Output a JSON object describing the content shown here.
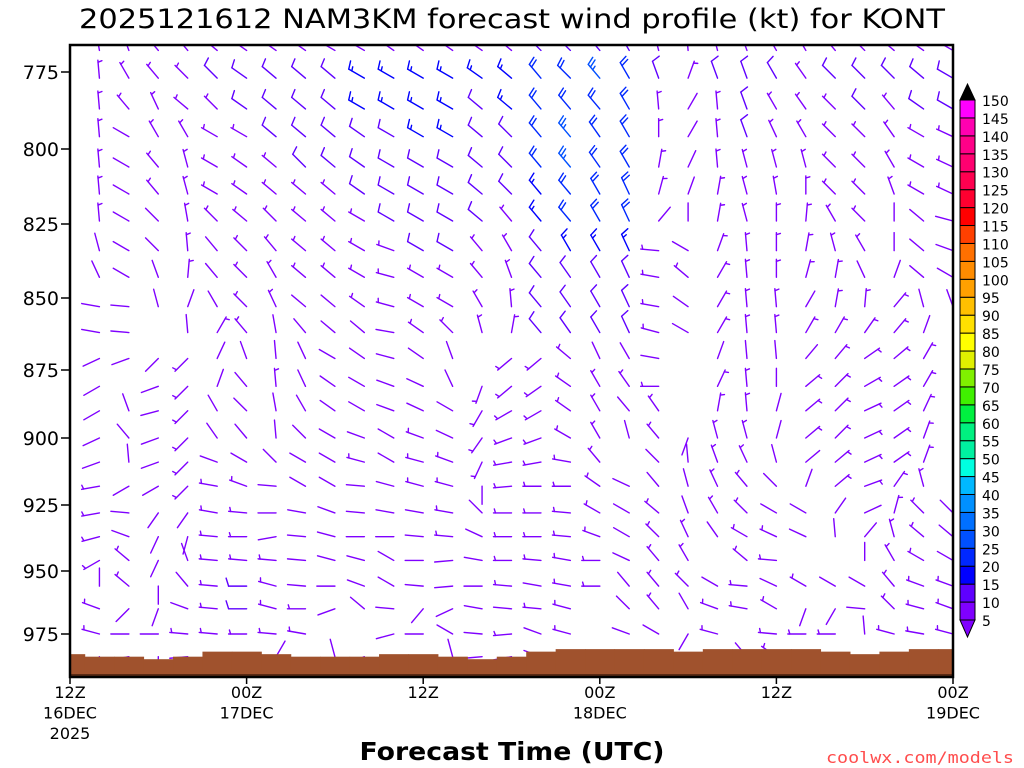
{
  "chart_data": {
    "type": "wind-barb",
    "title": "2025121612 NAM3KM forecast wind profile (kt) for KONT",
    "xlabel": "Forecast Time (UTC)",
    "ylabel": "",
    "units": "kt",
    "xlim": [
      0,
      60
    ],
    "ylim": [
      992,
      766
    ],
    "forecast_hours_step": 2,
    "y_ticks": [
      "775",
      "800",
      "825",
      "850",
      "875",
      "900",
      "925",
      "950",
      "975"
    ],
    "x_ticks": [
      {
        "hour": 0,
        "lines": [
          "12Z",
          "16DEC",
          "2025"
        ]
      },
      {
        "hour": 12,
        "lines": [
          "00Z",
          "17DEC"
        ]
      },
      {
        "hour": 24,
        "lines": [
          "12Z"
        ]
      },
      {
        "hour": 36,
        "lines": [
          "00Z",
          "18DEC"
        ]
      },
      {
        "hour": 48,
        "lines": [
          "12Z"
        ]
      },
      {
        "hour": 60,
        "lines": [
          "00Z",
          "19DEC"
        ]
      }
    ],
    "levels_hpa": [
      768,
      777,
      787,
      796,
      806,
      815,
      824,
      834,
      843,
      853,
      862,
      871,
      881,
      890,
      900,
      909,
      918,
      928,
      937,
      946,
      956,
      965,
      975,
      984
    ],
    "wind_rows_dir_kt": [
      "200/3 350/3 340/3 320/3 320/5 310/3 305/3 305/3 305/3 300/3 300/5 305/5 305/5 305/5 305/5 310/5 315/10 315/10 320/10 330/10 345/3 355/3 345/3 340/3 330/3 330/3 320/3 315/3 310/3 305/3 300/5",
      "210/10 355/5 330/5 320/5 315/5 315/10 305/10 310/10 310/10 310/10 300/15 300/15 300/15 300/15 305/15 310/15 320/20 315/20 320/25 330/20 340/10 20/5 340/10 340/10 330/10 325/5 315/10 315/10 315/10 310/10 300/10",
      "210/10 355/5 320/5 335/5 310/5 315/5 305/10 310/10 310/10 310/10 300/15 300/15 300/15 300/15 310/10 310/15 320/20 320/20 320/20 330/20 355/5 30/3 355/5 340/10 330/5 325/5 315/5 315/10 320/5 305/10 300/10",
      "210/10 355/5 300/3 330/5 330/5 300/5 300/5 310/10 310/10 310/10 305/10 300/10 300/15 300/15 310/10 315/10 320/20 320/25 325/20 330/20 0/5 30/3 355/5 340/10 335/5 330/5 315/5 315/5 325/5 300/5 295/5",
      "225/5 355/5 300/3 320/5 345/5 300/5 305/5 310/5 315/10 310/10 305/10 300/10 300/10 300/10 310/10 315/10 320/20 320/25 325/20 330/20 10/5 25/3 355/5 345/5 345/5 345/5 315/5 315/5 330/5 300/5 295/5",
      "225/5 355/5 300/3 320/5 345/5 300/5 305/5 310/5 310/5 310/5 305/10 300/10 300/10 300/10 310/10 315/10 320/15 320/20 330/20 335/20 15/5 20/3 10/5 345/5 350/5 0/5 315/5 315/5 340/5 300/5 295/5",
      "225/5 355/5 300/3 315/3 350/5 315/5 310/5 315/5 310/5 310/5 300/5 300/10 300/10 300/10 310/10 320/5 320/15 320/20 330/20 335/20 40/3 0/3 10/5 345/5 0/5 5/5 330/5 315/5 0/3 310/3 285/3",
      "225/5 345/3 300/3 315/3 355/5 320/3 315/5 320/5 310/5 310/5 300/5 290/5 300/10 300/10 320/5 330/5 320/10 330/15 330/15 335/15 275/5 300/3 20/5 355/5 0/5 10/5 345/5 330/5 0/3 310/3 290/3",
      "225/5 335/3 300/3 340/3 5/5 320/3 315/5 330/5 310/5 310/5 300/5 285/5 300/5 300/5 320/5 340/5 320/10 325/10 330/10 335/10 280/5 310/5 30/5 355/5 0/5 15/5 10/5 335/3 20/3 310/3 300/3",
      "235/10 280/3 275/3 345/3 20/3 330/3 315/5 335/5 310/3 310/3 305/5 285/5 300/5 300/5 330/5 355/5 320/10 325/10 330/10 335/10 280/5 305/3 30/5 355/5 355/5 30/3 10/5 5/5 40/5 345/3 340/3",
      "225/3 280/3 275/3 - 355/3 30/5 320/5 350/3 320/3 310/3 310/3 280/3 305/5 315/5 345/5 10/5 320/10 325/10 330/10 335/10 285/5 300/3 30/5 355/5 355/5 30/5 30/5 35/5 40/5 20/3 -",
      "210/3 245/3 250/3 225/3 225/5 25/3 340/3 355/3 335/3 300/3 305/3 285/3 305/3 340/3 - 230/5 230/5 310/5 335/3 330/3 280/3 - 20/3 355/3 355/3 40/3 40/5 55/5 50/5 30/5 -",
      "210/3 240/3 - 250/3 225/5 20/3 320/3 355/5 335/3 305/3 300/3 290/3 295/3 335/3 200/5 230/5 235/5 305/5 330/5 325/5 270/5 - 25/5 355/5 0/3 50/5 45/5 60/5 55/5 30/5 -",
      "210/3 240/3 340/3 255/3 225/5 330/3 315/3 350/3 330/3 305/3 300/3 290/3 295/3 300/3 210/5 240/5 240/5 305/5 330/5 320/3 325/5 - 10/5 355/5 15/3 50/5 45/5 65/5 55/5 25/5 -",
      "210/3 245/3 320/3 250/3 225/5 325/3 320/3 355/3 315/3 300/3 290/3 300/3 290/5 295/3 215/5 250/5 250/5 300/5 330/5 345/3 320/5 200/3 345/5 345/5 15/3 50/5 45/5 65/5 55/5 20/5 -",
      "210/3 250/3 355/3 250/3 225/5 290/3 300/3 315/3 300/3 300/3 285/5 300/3 285/5 290/5 205/5 260/5 260/5 280/5 320/5 - 315/3 355/3 340/5 335/5 345/3 50/3 50/5 65/5 55/5 20/5 -",
      "210/3 260/5 240/3 240/3 225/5 280/5 290/5 275/3 300/3 300/3 275/3 285/3 285/5 285/5 180/3 265/5 270/5 270/5 305/5 295/3 320/3 345/3 335/5 320/5 315/3 20/3 50/5 70/5 35/5 345/5 -",
      "235/5 260/5 275/3 215/3 215/3 280/5 275/5 270/3 280/3 290/3 275/3 280/3 280/3 280/5 315/3 270/5 270/5 275/5 300/5 300/3 310/5 340/3 330/5 315/5 300/3 300/3 35/3 65/3 15/5 315/5 315/3",
      "235/5 255/5 290/3 205/3 195/3 275/5 270/5 260/3 275/3 285/3 270/3 270/3 275/3 275/5 295/3 270/5 270/5 275/5 290/5 300/3 315/5 335/5 325/3 300/5 295/5 295/3 355/3 40/3 345/5 310/5 310/3",
      "235/5 240/5 310/5 205/3 340/3 275/5 275/5 275/5 275/3 285/3 285/3 300/3 270/3 265/3 280/3 270/5 275/5 280/5 270/5 295/3 320/5 330/5 - 310/5 275/5 - - 0/3 330/5 300/5 300/3",
      "290/3 0/3 310/5 180/3 320/3 275/5 270/10 285/5 275/3 270/3 290/3 300/3 275/3 265/3 270/3 275/5 280/3 280/5 270/5 320/3 320/5 315/5 300/3 275/5 295/3 300/5 300/3 300/3 320/5 290/5 290/5",
      "275/5 290/5 225/3 200/3 290/3 275/5 270/10 285/5 270/5 250/3 310/3 275/3 220/3 245/3 280/3 275/3 275/5 285/5 - 315/3 320/5 330/3 290/5 280/5 300/5 200/3 210/3 275/3 315/5 285/5 290/5",
      "275/5 285/5 270/3 270/3 275/5 275/5 270/5 275/5 280/5 - - 255/3 270/3 300/3 275/3 265/5 290/3 285/5 - 290/3 300/3 210/3 285/5 - 275/5 270/5 270/5 355/3 285/5 280/5 285/5",
      "- 215/3 260/3 180/3 265/3 - - 30/3 - 345/3 245/3 255/3 - 345/3 265/3 260/3 290/3 - - - 290/3 - - 320/3 305/5 - - - - - -"
    ],
    "surface_pressure_hpa": [
      983,
      984,
      984,
      985,
      984,
      982,
      982,
      983,
      984,
      984,
      984,
      983,
      983,
      984,
      985,
      984,
      982,
      981,
      981,
      981,
      981,
      982,
      981,
      981,
      981,
      981,
      982,
      983,
      982,
      981,
      981
    ],
    "colorbar": {
      "labels": [
        "5",
        "10",
        "15",
        "20",
        "25",
        "30",
        "35",
        "40",
        "45",
        "50",
        "55",
        "60",
        "65",
        "70",
        "75",
        "80",
        "85",
        "90",
        "95",
        "100",
        "105",
        "110",
        "115",
        "120",
        "125",
        "130",
        "135",
        "140",
        "145",
        "150"
      ],
      "colors": [
        "#7f00ff",
        "#5f00ff",
        "#0000ff",
        "#0028ff",
        "#0050ff",
        "#0070ff",
        "#0090ff",
        "#00b8ff",
        "#00ffe0",
        "#00f0a0",
        "#00f080",
        "#00f040",
        "#40f000",
        "#80f000",
        "#e0f000",
        "#ffff00",
        "#ffe000",
        "#ffc000",
        "#ffa000",
        "#ff8c00",
        "#ff7000",
        "#ff4000",
        "#ff0000",
        "#ff0030",
        "#ff0050",
        "#ff0070",
        "#ff0088",
        "#ff00b0",
        "#ff00ff"
      ],
      "over_color": "#000000",
      "under_color": "#8000ff"
    }
  },
  "watermark": "coolwx.com/models",
  "colors": {
    "terrain": "#a0522d",
    "watermark": "#ff4d4d",
    "frame": "#000000"
  }
}
